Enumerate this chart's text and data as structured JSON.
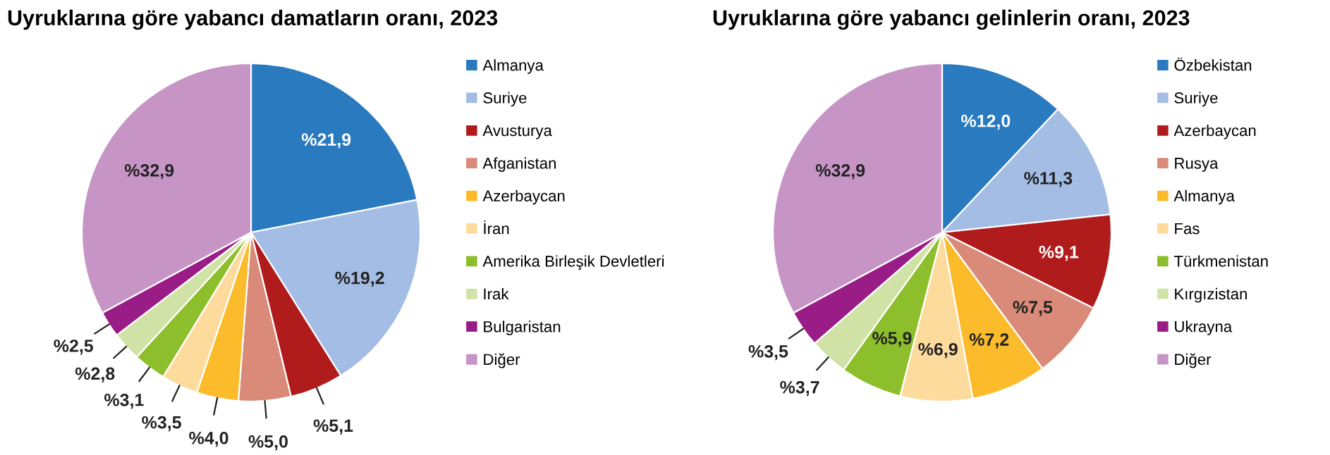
{
  "chart_data": [
    {
      "type": "pie",
      "title": "Uyruklarına göre yabancı damatların oranı, 2023",
      "legend": "right",
      "categories": [
        "Almanya",
        "Suriye",
        "Avusturya",
        "Afganistan",
        "Azerbaycan",
        "İran",
        "Amerika Birleşik Devletleri",
        "Irak",
        "Bulgaristan",
        "Diğer"
      ],
      "values": [
        21.9,
        19.2,
        5.1,
        5.0,
        4.0,
        3.5,
        3.1,
        2.8,
        2.5,
        32.9
      ],
      "value_labels": [
        "%21,9",
        "%19,2",
        "%5,1",
        "%5,0",
        "%4,0",
        "%3,5",
        "%3,1",
        "%2,8",
        "%2,5",
        "%32,9"
      ],
      "colors": [
        "#2a7abf",
        "#a4bde4",
        "#b01c1c",
        "#d98a78",
        "#fbbb2a",
        "#fddb9d",
        "#8dbe2b",
        "#d0e2a6",
        "#9a1c86",
        "#c794c6"
      ]
    },
    {
      "type": "pie",
      "title": "Uyruklarına göre yabancı gelinlerin oranı, 2023",
      "legend": "right",
      "categories": [
        "Özbekistan",
        "Suriye",
        "Azerbaycan",
        "Rusya",
        "Almanya",
        "Fas",
        "Türkmenistan",
        "Kırgızistan",
        "Ukrayna",
        "Diğer"
      ],
      "values": [
        12.0,
        11.3,
        9.1,
        7.5,
        7.2,
        6.9,
        5.9,
        3.7,
        3.5,
        32.9
      ],
      "value_labels": [
        "%12,0",
        "%11,3",
        "%9,1",
        "%7,5",
        "%7,2",
        "%6,9",
        "%5,9",
        "%3,7",
        "%3,5",
        "%32,9"
      ],
      "colors": [
        "#2a7abf",
        "#a4bde4",
        "#b01c1c",
        "#d98a78",
        "#fbbb2a",
        "#fddb9d",
        "#8dbe2b",
        "#d0e2a6",
        "#9a1c86",
        "#c794c6"
      ]
    }
  ]
}
